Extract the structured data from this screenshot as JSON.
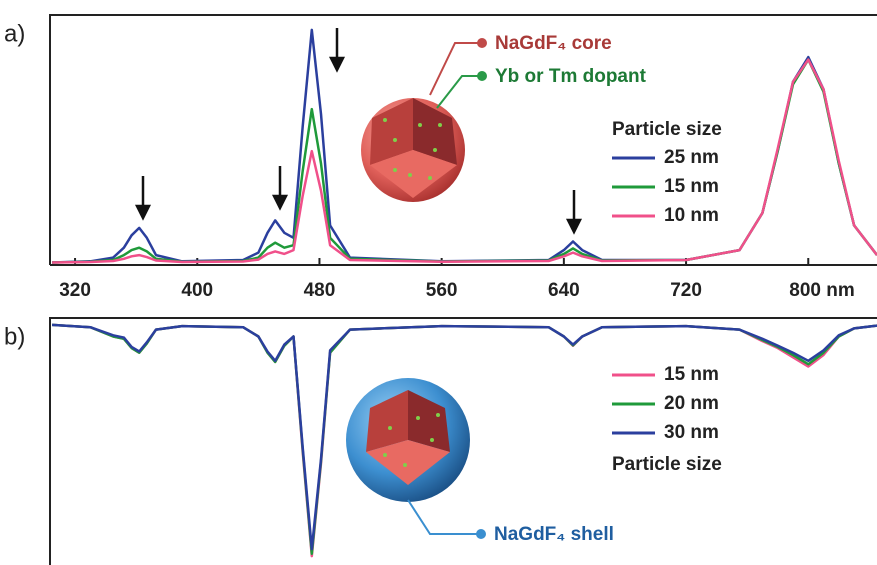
{
  "chart_data": [
    {
      "type": "line",
      "panel_label": "a)",
      "legend_title": "Particle size",
      "legend": "right",
      "annotations": [
        "NaGdF₄ core",
        "Yb or Tm dopant"
      ],
      "x": [
        305,
        330,
        345,
        352,
        357,
        362,
        367,
        373,
        390,
        430,
        440,
        446,
        451,
        457,
        463,
        469,
        475,
        481,
        487,
        500,
        560,
        630,
        640,
        646,
        652,
        665,
        720,
        755,
        770,
        780,
        790,
        800,
        810,
        820,
        830,
        845
      ],
      "xlim": [
        303.6,
        845
      ],
      "xticks": [
        320,
        400,
        480,
        560,
        640,
        720,
        {
          "value": 800,
          "label": "800 nm"
        }
      ],
      "ylim": [
        -0.01,
        1.0
      ],
      "series": [
        {
          "name": "25 nm",
          "color": "#2b3f9e",
          "values": [
            0,
            0.005,
            0.02,
            0.06,
            0.11,
            0.14,
            0.1,
            0.03,
            0.005,
            0.01,
            0.04,
            0.12,
            0.17,
            0.12,
            0.1,
            0.55,
            0.94,
            0.6,
            0.15,
            0.02,
            0.005,
            0.01,
            0.05,
            0.085,
            0.05,
            0.01,
            0.01,
            0.05,
            0.2,
            0.45,
            0.73,
            0.83,
            0.7,
            0.4,
            0.15,
            0.03
          ]
        },
        {
          "name": "15 nm",
          "color": "#1f9a3a",
          "values": [
            0,
            0.003,
            0.01,
            0.03,
            0.05,
            0.06,
            0.045,
            0.015,
            0.003,
            0.006,
            0.02,
            0.06,
            0.08,
            0.06,
            0.07,
            0.37,
            0.62,
            0.4,
            0.1,
            0.015,
            0.004,
            0.008,
            0.035,
            0.057,
            0.035,
            0.008,
            0.01,
            0.05,
            0.2,
            0.45,
            0.72,
            0.82,
            0.69,
            0.4,
            0.15,
            0.03
          ]
        },
        {
          "name": "10 nm",
          "color": "#f0508a",
          "values": [
            0,
            0.002,
            0.006,
            0.015,
            0.025,
            0.03,
            0.022,
            0.008,
            0.002,
            0.004,
            0.012,
            0.035,
            0.045,
            0.035,
            0.05,
            0.27,
            0.45,
            0.29,
            0.07,
            0.01,
            0.003,
            0.006,
            0.025,
            0.04,
            0.025,
            0.006,
            0.01,
            0.05,
            0.2,
            0.46,
            0.73,
            0.82,
            0.7,
            0.41,
            0.15,
            0.03
          ]
        }
      ]
    },
    {
      "type": "line",
      "panel_label": "b)",
      "legend_title": "Particle size",
      "legend": "right",
      "annotations": [
        "NaGdF₄ shell"
      ],
      "x": [
        305,
        330,
        345,
        352,
        357,
        362,
        367,
        373,
        390,
        430,
        440,
        446,
        451,
        457,
        463,
        469,
        475,
        481,
        487,
        500,
        560,
        630,
        640,
        646,
        652,
        665,
        720,
        755,
        770,
        780,
        790,
        800,
        810,
        820,
        830,
        845
      ],
      "xlim": [
        303.6,
        845
      ],
      "ylim": [
        -1.03,
        0.03
      ],
      "series": [
        {
          "name": "15 nm",
          "color": "#f0508a",
          "values": [
            0,
            -0.01,
            -0.05,
            -0.06,
            -0.1,
            -0.12,
            -0.08,
            -0.02,
            -0.005,
            -0.01,
            -0.05,
            -0.12,
            -0.16,
            -0.09,
            -0.05,
            -0.55,
            -1.0,
            -0.6,
            -0.12,
            -0.02,
            -0.005,
            -0.01,
            -0.05,
            -0.09,
            -0.05,
            -0.01,
            -0.005,
            -0.02,
            -0.07,
            -0.1,
            -0.14,
            -0.18,
            -0.13,
            -0.05,
            -0.015,
            -0.003
          ]
        },
        {
          "name": "20 nm",
          "color": "#1f9a3a",
          "values": [
            0,
            -0.01,
            -0.05,
            -0.06,
            -0.1,
            -0.12,
            -0.08,
            -0.02,
            -0.005,
            -0.01,
            -0.05,
            -0.12,
            -0.16,
            -0.09,
            -0.05,
            -0.54,
            -0.99,
            -0.59,
            -0.12,
            -0.02,
            -0.005,
            -0.01,
            -0.05,
            -0.088,
            -0.05,
            -0.01,
            -0.005,
            -0.02,
            -0.065,
            -0.095,
            -0.13,
            -0.17,
            -0.12,
            -0.05,
            -0.015,
            -0.003
          ]
        },
        {
          "name": "30 nm",
          "color": "#2b3f9e",
          "values": [
            0,
            -0.01,
            -0.045,
            -0.055,
            -0.095,
            -0.115,
            -0.075,
            -0.02,
            -0.005,
            -0.01,
            -0.05,
            -0.115,
            -0.155,
            -0.085,
            -0.05,
            -0.53,
            -0.97,
            -0.58,
            -0.11,
            -0.02,
            -0.005,
            -0.01,
            -0.05,
            -0.085,
            -0.05,
            -0.01,
            -0.005,
            -0.02,
            -0.06,
            -0.09,
            -0.12,
            -0.155,
            -0.11,
            -0.045,
            -0.015,
            -0.003
          ]
        }
      ]
    }
  ]
}
